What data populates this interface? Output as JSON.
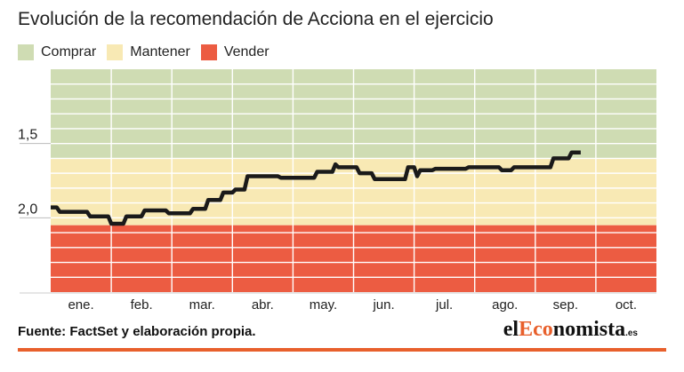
{
  "chart_data": {
    "type": "line",
    "title": "Evolución de la recomendación de Acciona en el ejercicio",
    "legend": [
      {
        "label": "Comprar",
        "color": "#cfdcb3"
      },
      {
        "label": "Mantener",
        "color": "#f8e9b4"
      },
      {
        "label": "Vender",
        "color": "#ec5c42"
      }
    ],
    "zones": [
      {
        "name": "Comprar",
        "from": 1.0,
        "to": 1.6,
        "color": "#cfdcb3"
      },
      {
        "name": "Mantener",
        "from": 1.6,
        "to": 2.05,
        "color": "#f8e9b4"
      },
      {
        "name": "Vender",
        "from": 2.05,
        "to": 2.5,
        "color": "#ec5c42"
      }
    ],
    "ylim": [
      1.0,
      2.5
    ],
    "y_inverted": true,
    "y_ticks": [
      1.5,
      2.0
    ],
    "y_tick_labels": [
      "1,5",
      "2,0"
    ],
    "x_range": [
      0,
      10
    ],
    "x_tick_positions": [
      0.5,
      1.5,
      2.5,
      3.5,
      4.5,
      5.5,
      6.5,
      7.5,
      8.5,
      9.5
    ],
    "months": [
      "ene.",
      "feb.",
      "mar.",
      "abr.",
      "may.",
      "jun.",
      "jul.",
      "ago.",
      "sep.",
      "oct."
    ],
    "series": [
      {
        "color": "#1a1a1a",
        "points": [
          [
            0.0,
            1.93
          ],
          [
            0.1,
            1.93
          ],
          [
            0.15,
            1.96
          ],
          [
            0.6,
            1.96
          ],
          [
            0.65,
            1.99
          ],
          [
            0.95,
            1.99
          ],
          [
            1.0,
            2.04
          ],
          [
            1.2,
            2.04
          ],
          [
            1.25,
            1.99
          ],
          [
            1.5,
            1.99
          ],
          [
            1.55,
            1.95
          ],
          [
            1.9,
            1.95
          ],
          [
            1.95,
            1.97
          ],
          [
            2.3,
            1.97
          ],
          [
            2.35,
            1.94
          ],
          [
            2.55,
            1.94
          ],
          [
            2.6,
            1.88
          ],
          [
            2.8,
            1.88
          ],
          [
            2.85,
            1.83
          ],
          [
            3.0,
            1.83
          ],
          [
            3.05,
            1.81
          ],
          [
            3.2,
            1.81
          ],
          [
            3.25,
            1.72
          ],
          [
            3.75,
            1.72
          ],
          [
            3.8,
            1.73
          ],
          [
            4.35,
            1.73
          ],
          [
            4.4,
            1.69
          ],
          [
            4.65,
            1.69
          ],
          [
            4.7,
            1.64
          ],
          [
            4.75,
            1.66
          ],
          [
            5.05,
            1.66
          ],
          [
            5.1,
            1.7
          ],
          [
            5.3,
            1.7
          ],
          [
            5.35,
            1.74
          ],
          [
            5.85,
            1.74
          ],
          [
            5.9,
            1.66
          ],
          [
            6.0,
            1.66
          ],
          [
            6.05,
            1.72
          ],
          [
            6.1,
            1.68
          ],
          [
            6.3,
            1.68
          ],
          [
            6.35,
            1.67
          ],
          [
            6.85,
            1.67
          ],
          [
            6.9,
            1.66
          ],
          [
            7.4,
            1.66
          ],
          [
            7.45,
            1.68
          ],
          [
            7.6,
            1.68
          ],
          [
            7.65,
            1.66
          ],
          [
            8.25,
            1.66
          ],
          [
            8.3,
            1.6
          ],
          [
            8.55,
            1.6
          ],
          [
            8.6,
            1.56
          ],
          [
            8.75,
            1.56
          ]
        ]
      }
    ],
    "grid": true
  },
  "source": "Fuente: FactSet y elaboración propia.",
  "brand": {
    "prefix": "el",
    "accent": "Eco",
    "rest": "nomista",
    "tld": ".es"
  }
}
